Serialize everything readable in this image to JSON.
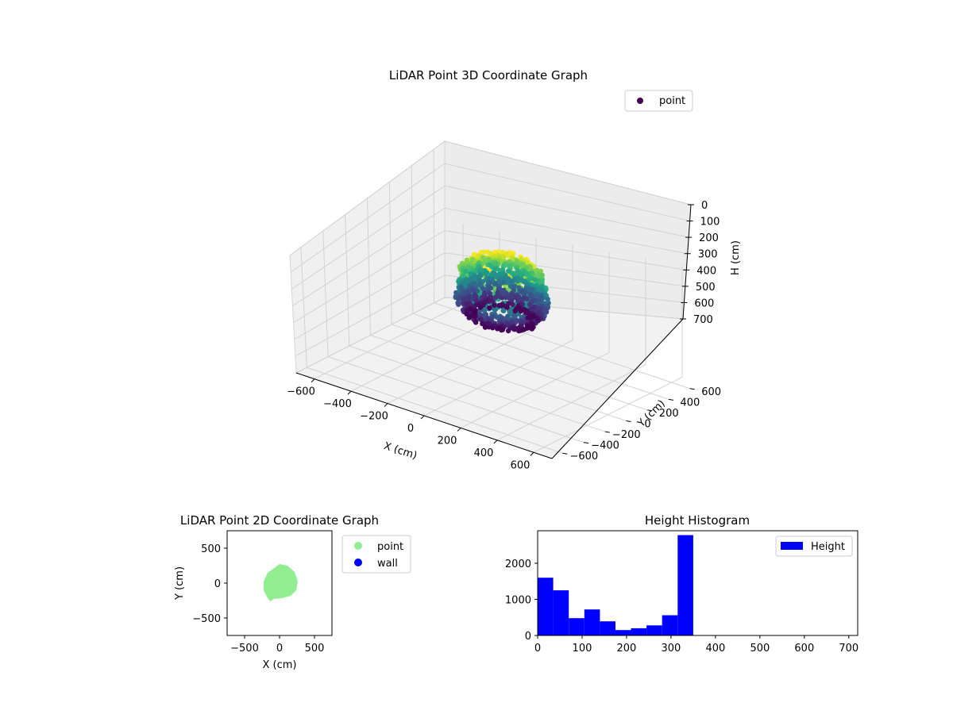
{
  "chart_data": [
    {
      "type": "scatter3d",
      "title": "LiDAR Point 3D Coordinate Graph",
      "xlabel": "X (cm)",
      "ylabel": "Y (cm)",
      "zlabel": "H (cm)",
      "xticks": [
        "−600",
        "−400",
        "−200",
        "0",
        "200",
        "400",
        "600"
      ],
      "yticks": [
        "−600",
        "−400",
        "−200",
        "0",
        "200",
        "400",
        "600"
      ],
      "zticks": [
        "0",
        "100",
        "200",
        "300",
        "400",
        "500",
        "600",
        "700"
      ],
      "xlim": [
        -700,
        700
      ],
      "ylim": [
        -700,
        700
      ],
      "zlim": [
        0,
        700
      ],
      "z_inverted": true,
      "colormap": "viridis",
      "grid": true,
      "legend": {
        "entries": [
          "point"
        ],
        "placement": "top-right",
        "color": "#440154"
      },
      "series": [
        {
          "name": "point",
          "x_range": [
            -200,
            250
          ],
          "y_range": [
            -250,
            250
          ],
          "h_range": [
            0,
            350
          ]
        }
      ]
    },
    {
      "type": "scatter",
      "title": "LiDAR Point 2D Coordinate Graph",
      "xlabel": "X (cm)",
      "ylabel": "Y (cm)",
      "xticks": [
        "−500",
        "0",
        "500"
      ],
      "yticks": [
        "−500",
        "0",
        "500"
      ],
      "xlim": [
        -750,
        750
      ],
      "ylim": [
        -750,
        750
      ],
      "legend": {
        "entries": [
          "point",
          "wall"
        ],
        "placement": "outside-right"
      },
      "series": [
        {
          "name": "point",
          "color": "#90ee90",
          "x_range": [
            -230,
            250
          ],
          "y_range": [
            -250,
            260
          ]
        },
        {
          "name": "wall",
          "color": "#0000ff",
          "x_range": [],
          "y_range": []
        }
      ]
    },
    {
      "type": "bar",
      "title": "Height Histogram",
      "xlabel": "",
      "ylabel": "",
      "xticks": [
        "0",
        "100",
        "200",
        "300",
        "400",
        "500",
        "600",
        "700"
      ],
      "yticks": [
        "0",
        "1000",
        "2000"
      ],
      "xlim": [
        0,
        720
      ],
      "ylim": [
        0,
        2900
      ],
      "bin_width": 35,
      "bin_starts": [
        0,
        35,
        70,
        105,
        140,
        175,
        210,
        245,
        280,
        315
      ],
      "values": [
        1600,
        1250,
        480,
        720,
        390,
        150,
        200,
        280,
        560,
        2780
      ],
      "color": "#0000ff",
      "legend": {
        "entries": [
          "Height"
        ],
        "placement": "top-right"
      }
    }
  ]
}
